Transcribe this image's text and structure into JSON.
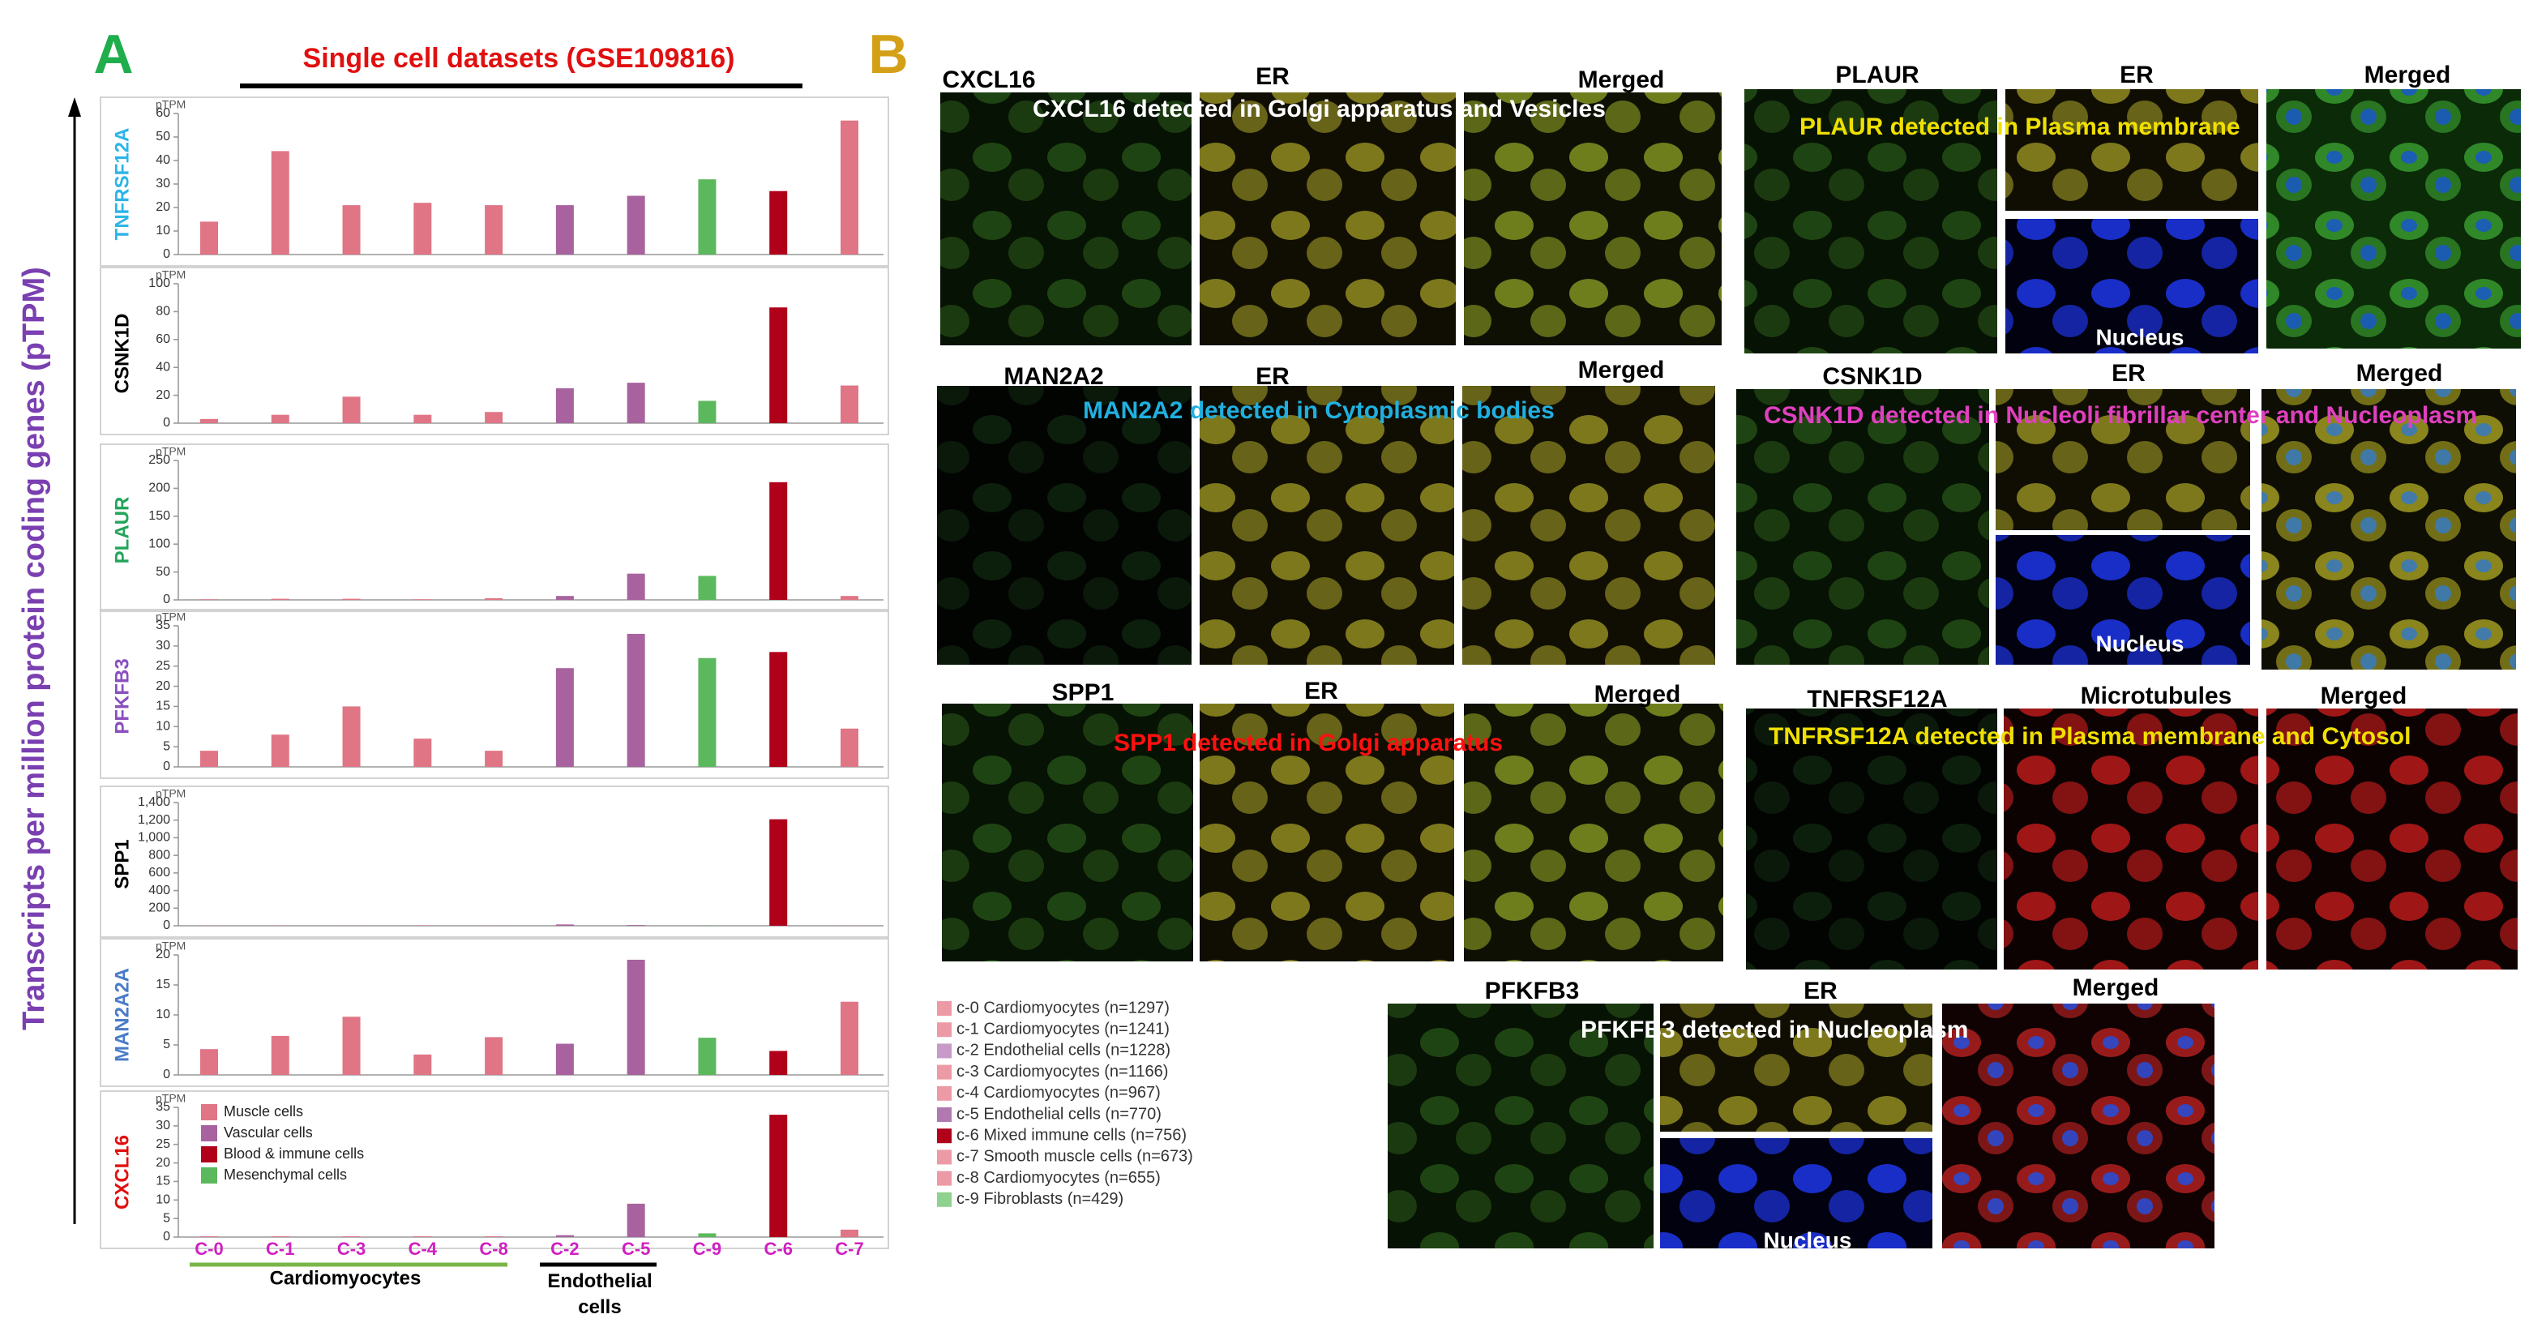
{
  "chart_data": {
    "type": "bar",
    "panel_letter": "A",
    "title": "Single cell datasets (GSE109816)",
    "ylabel": "Transcripts per million protein coding genes (pTPM)",
    "unit": "pTPM",
    "categories": [
      "C-0",
      "C-1",
      "C-3",
      "C-4",
      "C-8",
      "C-2",
      "C-5",
      "C-9",
      "C-6",
      "C-7"
    ],
    "colors": [
      "#e07585",
      "#e07585",
      "#e07585",
      "#e07585",
      "#e07585",
      "#a8639f",
      "#a8639f",
      "#5cb85c",
      "#b0001a",
      "#e07585"
    ],
    "panels": [
      {
        "label": "TNFRSF12A",
        "label_color": "#2cb5e8",
        "values": [
          14,
          44,
          21,
          22,
          21,
          21,
          25,
          32,
          27,
          57
        ],
        "ylim": [
          0,
          60
        ],
        "yticks": [
          0,
          10,
          20,
          30,
          40,
          50,
          60
        ]
      },
      {
        "label": "CSNK1D",
        "label_color": "#000000",
        "values": [
          3,
          6,
          19,
          6,
          8,
          25,
          29,
          16,
          83,
          27
        ],
        "ylim": [
          0,
          100
        ],
        "yticks": [
          0,
          20,
          40,
          60,
          80,
          100
        ]
      },
      {
        "label": "PLAUR",
        "label_color": "#22a55a",
        "values": [
          1,
          2,
          2,
          1,
          3,
          7,
          47,
          43,
          211,
          7
        ],
        "ylim": [
          0,
          250
        ],
        "yticks": [
          0,
          50,
          100,
          150,
          200,
          250
        ]
      },
      {
        "label": "PFKFB3",
        "label_color": "#8a4fbf",
        "values": [
          4,
          8,
          15,
          7,
          4,
          24.5,
          33,
          27,
          28.5,
          9.5
        ],
        "ylim": [
          0,
          35
        ],
        "yticks": [
          0,
          5,
          10,
          15,
          20,
          25,
          30,
          35
        ]
      },
      {
        "label": "SPP1",
        "label_color": "#000000",
        "values": [
          2,
          2,
          2,
          4,
          2,
          15,
          8,
          2,
          1210,
          2
        ],
        "ylim": [
          0,
          1400
        ],
        "yticks": [
          0,
          200,
          400,
          600,
          800,
          {
            "value": 1000,
            "label": "1,000"
          },
          {
            "value": 1200,
            "label": "1,200"
          },
          {
            "value": 1400,
            "label": "1,400"
          }
        ]
      },
      {
        "label": "MAN2A2A",
        "label_color": "#4a7bc8",
        "values": [
          4.3,
          6.5,
          9.7,
          3.4,
          6.3,
          5.2,
          19.2,
          6.2,
          4,
          12.2
        ],
        "ylim": [
          0,
          20
        ],
        "yticks": [
          0,
          5,
          10,
          15,
          20
        ]
      },
      {
        "label": "CXCL16",
        "label_color": "#e01010",
        "values": [
          0.2,
          0.2,
          0.2,
          0.2,
          0.2,
          0.5,
          9,
          1,
          33,
          2
        ],
        "ylim": [
          0,
          35
        ],
        "yticks": [
          0,
          5,
          10,
          15,
          20,
          25,
          30,
          35
        ]
      }
    ],
    "legend": [
      {
        "name": "Muscle cells",
        "color": "#e07585"
      },
      {
        "name": "Vascular cells",
        "color": "#a8639f"
      },
      {
        "name": "Blood & immune cells",
        "color": "#b0001a"
      },
      {
        "name": "Mesenchymal cells",
        "color": "#5cb85c"
      }
    ],
    "groups": [
      {
        "label": "Cardiomyocytes",
        "color": "#7ab648"
      },
      {
        "label": "Endothelial cells",
        "color": "#000000"
      }
    ],
    "cluster_legend": [
      {
        "name": "c-0 Cardiomyocytes (n=1297)",
        "color": "#ec9aa6"
      },
      {
        "name": "c-1 Cardiomyocytes (n=1241)",
        "color": "#ec9aa6"
      },
      {
        "name": "c-2 Endothelial cells (n=1228)",
        "color": "#c79ac7"
      },
      {
        "name": "c-3 Cardiomyocytes (n=1166)",
        "color": "#ec9aa6"
      },
      {
        "name": "c-4 Cardiomyocytes (n=967)",
        "color": "#ec9aa6"
      },
      {
        "name": "c-5 Endothelial cells (n=770)",
        "color": "#b07ab0"
      },
      {
        "name": "c-6 Mixed immune cells (n=756)",
        "color": "#b0001a"
      },
      {
        "name": "c-7 Smooth muscle cells (n=673)",
        "color": "#ec9aa6"
      },
      {
        "name": "c-8 Cardiomyocytes (n=655)",
        "color": "#ec9aa6"
      },
      {
        "name": "c-9 Fibroblasts (n=429)",
        "color": "#8fd18f"
      }
    ]
  },
  "panel_b": {
    "letter": "B",
    "groups": [
      {
        "labels": [
          "CXCL16",
          "ER",
          "Merged"
        ],
        "caption": "CXCL16 detected in Golgi apparatus and Vesicles",
        "caption_color": "#ffffff"
      },
      {
        "labels": [
          "PLAUR",
          "ER",
          "Merged"
        ],
        "caption": "PLAUR detected in Plasma membrane",
        "caption_color": "#f0e000",
        "nucleus": "Nucleus"
      },
      {
        "labels": [
          "MAN2A2",
          "ER",
          "Merged"
        ],
        "caption": "MAN2A2 detected in Cytoplasmic bodies",
        "caption_color": "#20b0e0"
      },
      {
        "labels": [
          "CSNK1D",
          "ER",
          "Merged"
        ],
        "caption": "CSNK1D detected in Nucleoli fibrillar center and Nucleoplasm",
        "caption_color": "#e040c0",
        "nucleus": "Nucleus"
      },
      {
        "labels": [
          "SPP1",
          "ER",
          "Merged"
        ],
        "caption": "SPP1 detected in Golgi apparatus",
        "caption_color": "#ff1010"
      },
      {
        "labels": [
          "TNFRSF12A",
          "Microtubules",
          "Merged"
        ],
        "caption": "TNFRSF12A detected in Plasma membrane and Cytosol",
        "caption_color": "#f0e000"
      },
      {
        "labels": [
          "PFKFB3",
          "ER",
          "Merged"
        ],
        "caption": "PFKFB3 detected in Nucleoplasm",
        "caption_color": "#ffffff",
        "nucleus": "Nucleus"
      }
    ]
  }
}
